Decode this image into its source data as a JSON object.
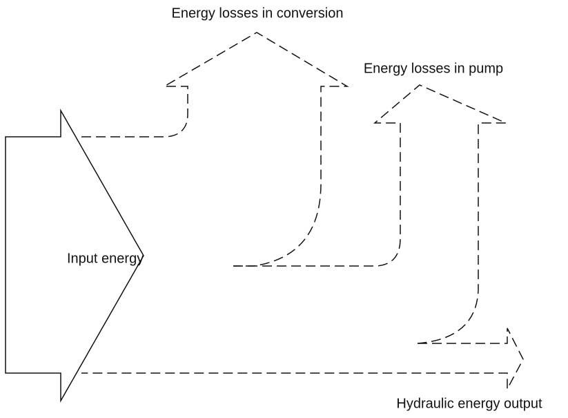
{
  "nodes": [
    {
      "label": "Input energy"
    },
    {
      "label": "Energy losses in conversion"
    },
    {
      "label": "Energy losses in pump"
    },
    {
      "label": "Hydraulic energy output"
    }
  ]
}
